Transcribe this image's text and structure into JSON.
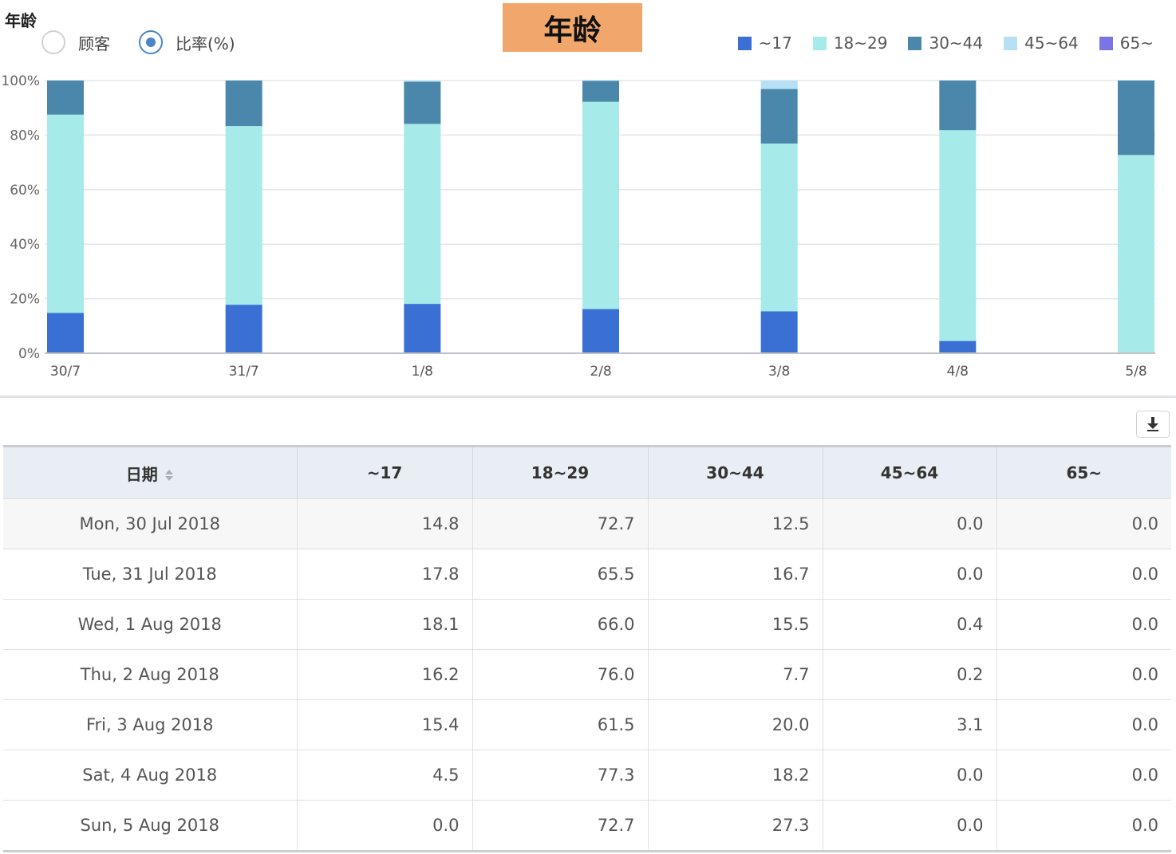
{
  "section_title": "年龄",
  "chart_title": "年龄",
  "radios": [
    {
      "label": "顾客",
      "checked": false
    },
    {
      "label": "比率(%)",
      "checked": true
    }
  ],
  "colors": {
    "series": [
      "#3a6fd4",
      "#a6eaea",
      "#4a87aa",
      "#b7e0f5",
      "#7b74e6"
    ],
    "title_bg": "#f1a66b",
    "header_bg": "#e8eef3"
  },
  "chart_data": {
    "type": "bar",
    "stacked": true,
    "categories": [
      "30/7",
      "31/7",
      "1/8",
      "2/8",
      "3/8",
      "4/8",
      "5/8"
    ],
    "series": [
      {
        "name": "~17",
        "values": [
          14.8,
          17.8,
          18.1,
          16.2,
          15.4,
          4.5,
          0.0
        ]
      },
      {
        "name": "18~29",
        "values": [
          72.7,
          65.5,
          66.0,
          76.0,
          61.5,
          77.3,
          72.7
        ]
      },
      {
        "name": "30~44",
        "values": [
          12.5,
          16.7,
          15.5,
          7.7,
          20.0,
          18.2,
          27.3
        ]
      },
      {
        "name": "45~64",
        "values": [
          0.0,
          0.0,
          0.4,
          0.2,
          3.1,
          0.0,
          0.0
        ]
      },
      {
        "name": "65~",
        "values": [
          0.0,
          0.0,
          0.0,
          0.0,
          0.0,
          0.0,
          0.0
        ]
      }
    ],
    "yticks": [
      "0%",
      "20%",
      "40%",
      "60%",
      "80%",
      "100%"
    ],
    "ylim": [
      0,
      100
    ],
    "grid": true,
    "legend": "top-right"
  },
  "table": {
    "headers": [
      "日期",
      "~17",
      "18~29",
      "30~44",
      "45~64",
      "65~"
    ],
    "rows": [
      [
        "Mon, 30 Jul 2018",
        "14.8",
        "72.7",
        "12.5",
        "0.0",
        "0.0"
      ],
      [
        "Tue, 31 Jul 2018",
        "17.8",
        "65.5",
        "16.7",
        "0.0",
        "0.0"
      ],
      [
        "Wed, 1 Aug 2018",
        "18.1",
        "66.0",
        "15.5",
        "0.4",
        "0.0"
      ],
      [
        "Thu, 2 Aug 2018",
        "16.2",
        "76.0",
        "7.7",
        "0.2",
        "0.0"
      ],
      [
        "Fri, 3 Aug 2018",
        "15.4",
        "61.5",
        "20.0",
        "3.1",
        "0.0"
      ],
      [
        "Sat, 4 Aug 2018",
        "4.5",
        "77.3",
        "18.2",
        "0.0",
        "0.0"
      ],
      [
        "Sun, 5 Aug 2018",
        "0.0",
        "72.7",
        "27.3",
        "0.0",
        "0.0"
      ]
    ]
  },
  "icons": {
    "download": "download-icon",
    "sort": "sort-icon"
  }
}
